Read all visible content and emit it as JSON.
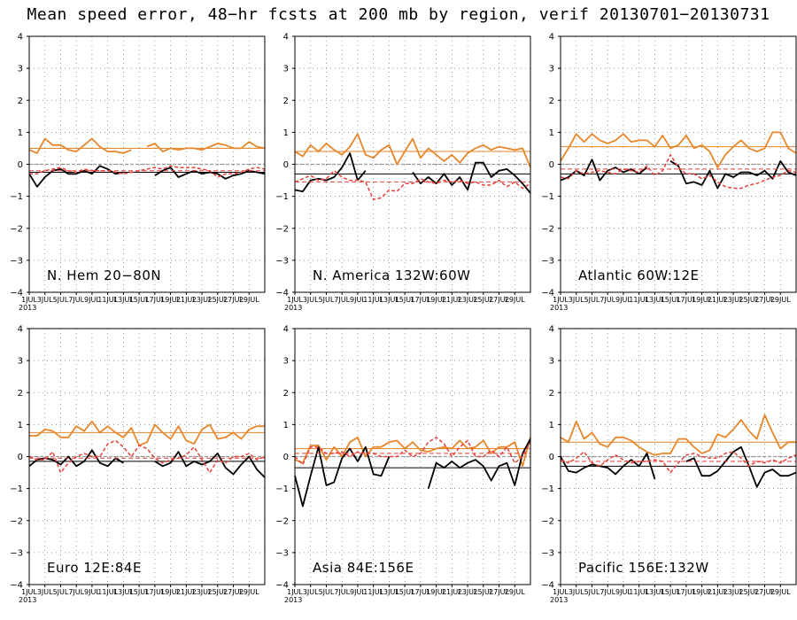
{
  "title": "Mean speed error, 48−hr fcsts at 200 mb by region, verif 20130701−20130731",
  "colors": {
    "orange": "#e8862a",
    "black": "#000000",
    "red": "#e8403a",
    "zero": "#9a9a9a",
    "grid": "#777777"
  },
  "chart_data": [
    {
      "type": "line",
      "label": "N. Hem 20−80N",
      "ylim": [
        -4,
        4
      ],
      "grid": true,
      "yticks": [
        "4",
        "3",
        "2",
        "1",
        "0",
        "−1",
        "−2",
        "−3",
        "−4"
      ],
      "xtick_labels": [
        "1JUL",
        "3JUL",
        "5JUL",
        "7JUL",
        "9JUL",
        "11JUL",
        "13JUL",
        "15JUL",
        "17JUL",
        "19JUL",
        "21JUL",
        "23JUL",
        "25JUL",
        "27JUL",
        "29JUL"
      ],
      "year_label": "2013",
      "series": [
        {
          "color": "orange",
          "dash": false,
          "mean": 0.5,
          "values": [
            0.45,
            0.35,
            0.8,
            0.6,
            0.6,
            0.45,
            0.4,
            0.6,
            0.8,
            0.55,
            0.4,
            0.4,
            0.35,
            0.45,
            null,
            0.55,
            0.65,
            0.4,
            0.5,
            0.45,
            0.5,
            0.5,
            0.45,
            0.55,
            0.65,
            0.6,
            0.5,
            0.5,
            0.7,
            0.55,
            0.5
          ]
        },
        {
          "color": "black",
          "dash": false,
          "mean": -0.25,
          "values": [
            -0.3,
            -0.7,
            -0.4,
            -0.2,
            -0.15,
            -0.3,
            -0.3,
            -0.2,
            -0.3,
            -0.05,
            -0.15,
            -0.3,
            -0.25,
            null,
            null,
            null,
            -0.35,
            -0.2,
            -0.1,
            -0.4,
            -0.3,
            -0.2,
            -0.3,
            -0.25,
            -0.3,
            -0.45,
            -0.35,
            -0.3,
            -0.2,
            -0.25,
            -0.3
          ]
        },
        {
          "color": "red",
          "dash": true,
          "mean": -0.2,
          "values": [
            -0.3,
            -0.3,
            -0.2,
            -0.15,
            -0.1,
            -0.2,
            -0.25,
            -0.15,
            -0.2,
            -0.2,
            -0.2,
            -0.25,
            -0.3,
            -0.25,
            -0.2,
            -0.15,
            -0.1,
            -0.15,
            -0.05,
            -0.1,
            -0.1,
            -0.1,
            -0.15,
            -0.2,
            -0.4,
            -0.3,
            -0.3,
            -0.25,
            -0.15,
            -0.1,
            -0.15
          ]
        }
      ]
    },
    {
      "type": "line",
      "label": "N. America 132W:60W",
      "ylim": [
        -4,
        4
      ],
      "grid": true,
      "yticks": [
        "4",
        "3",
        "2",
        "1",
        "0",
        "−1",
        "−2",
        "−3",
        "−4"
      ],
      "xtick_labels": [
        "1JUL",
        "3JUL",
        "5JUL",
        "7JUL",
        "9JUL",
        "11JUL",
        "13JUL",
        "15JUL",
        "17JUL",
        "19JUL",
        "21JUL",
        "23JUL",
        "25JUL",
        "27JUL",
        "29JUL"
      ],
      "year_label": "2013",
      "series": [
        {
          "color": "orange",
          "dash": false,
          "mean": 0.4,
          "values": [
            0.4,
            0.25,
            0.6,
            0.4,
            0.65,
            0.45,
            0.3,
            0.55,
            0.95,
            0.3,
            0.2,
            0.45,
            0.6,
            0.0,
            0.4,
            0.8,
            0.2,
            0.5,
            0.3,
            0.1,
            0.3,
            0.05,
            0.35,
            0.5,
            0.6,
            0.45,
            0.55,
            0.5,
            0.45,
            0.5,
            -0.1
          ]
        },
        {
          "color": "black",
          "dash": false,
          "mean": -0.3,
          "values": [
            -0.8,
            -0.85,
            -0.5,
            -0.45,
            -0.5,
            -0.4,
            -0.1,
            0.35,
            -0.5,
            -0.2,
            null,
            null,
            null,
            null,
            null,
            -0.25,
            -0.6,
            -0.4,
            -0.6,
            -0.3,
            -0.65,
            -0.4,
            -0.8,
            0.05,
            0.05,
            -0.4,
            -0.2,
            -0.15,
            -0.35,
            -0.6,
            -0.9
          ]
        },
        {
          "color": "red",
          "dash": true,
          "mean": -0.55,
          "values": [
            -0.55,
            -0.45,
            -0.35,
            -0.5,
            -0.45,
            -0.2,
            -0.4,
            -0.5,
            -0.5,
            -0.55,
            -1.1,
            -1.05,
            -0.8,
            -0.85,
            -0.6,
            -0.6,
            -0.45,
            -0.55,
            -0.6,
            -0.5,
            -0.55,
            -0.5,
            -0.6,
            -0.55,
            -0.65,
            -0.65,
            -0.5,
            -0.7,
            -0.55,
            -0.75,
            -0.6
          ]
        }
      ]
    },
    {
      "type": "line",
      "label": "Atlantic 60W:12E",
      "ylim": [
        -4,
        4
      ],
      "grid": true,
      "yticks": [
        "4",
        "3",
        "2",
        "1",
        "0",
        "−1",
        "−2",
        "−3",
        "−4"
      ],
      "xtick_labels": [
        "1JUL",
        "3JUL",
        "5JUL",
        "7JUL",
        "9JUL",
        "11JUL",
        "13JUL",
        "15JUL",
        "17JUL",
        "19JUL",
        "21JUL",
        "23JUL",
        "25JUL",
        "27JUL",
        "29JUL"
      ],
      "year_label": "2013",
      "series": [
        {
          "color": "orange",
          "dash": false,
          "mean": 0.55,
          "values": [
            0.1,
            0.5,
            0.95,
            0.7,
            0.95,
            0.75,
            0.65,
            0.75,
            0.95,
            0.7,
            0.75,
            0.75,
            0.55,
            0.9,
            0.5,
            0.6,
            0.9,
            0.5,
            0.6,
            0.4,
            -0.1,
            0.3,
            0.55,
            0.75,
            0.5,
            0.4,
            0.5,
            1.0,
            1.0,
            0.5,
            0.35
          ]
        },
        {
          "color": "black",
          "dash": false,
          "mean": -0.3,
          "values": [
            -0.5,
            -0.4,
            -0.2,
            -0.35,
            0.15,
            -0.5,
            -0.2,
            -0.1,
            -0.25,
            -0.15,
            -0.3,
            -0.1,
            null,
            null,
            0.1,
            -0.05,
            -0.6,
            -0.55,
            -0.65,
            -0.2,
            -0.75,
            -0.3,
            -0.4,
            -0.25,
            -0.25,
            -0.35,
            -0.2,
            -0.45,
            0.1,
            -0.25,
            -0.35
          ]
        },
        {
          "color": "red",
          "dash": true,
          "mean": -0.15,
          "values": [
            -0.4,
            -0.45,
            -0.2,
            -0.3,
            -0.25,
            -0.2,
            -0.25,
            -0.3,
            -0.15,
            -0.2,
            -0.25,
            -0.05,
            -0.35,
            -0.2,
            0.3,
            -0.1,
            -0.3,
            -0.3,
            -0.45,
            -0.35,
            -0.55,
            -0.7,
            -0.75,
            -0.75,
            -0.65,
            -0.6,
            -0.5,
            -0.4,
            -0.35,
            -0.2,
            -0.25
          ]
        }
      ]
    },
    {
      "type": "line",
      "label": "Euro 12E:84E",
      "ylim": [
        -4,
        4
      ],
      "grid": true,
      "yticks": [
        "4",
        "3",
        "2",
        "1",
        "0",
        "−1",
        "−2",
        "−3",
        "−4"
      ],
      "xtick_labels": [
        "1JUL",
        "3JUL",
        "5JUL",
        "7JUL",
        "9JUL",
        "11JUL",
        "13JUL",
        "15JUL",
        "17JUL",
        "19JUL",
        "21JUL",
        "23JUL",
        "25JUL",
        "27JUL",
        "29JUL"
      ],
      "year_label": "2013",
      "series": [
        {
          "color": "orange",
          "dash": false,
          "mean": 0.75,
          "values": [
            0.65,
            0.65,
            0.85,
            0.8,
            0.6,
            0.6,
            0.95,
            0.8,
            1.1,
            0.75,
            0.95,
            0.75,
            0.6,
            0.9,
            0.35,
            0.45,
            1.0,
            0.75,
            0.55,
            0.95,
            0.5,
            0.4,
            0.85,
            1.0,
            0.55,
            0.6,
            0.75,
            0.55,
            0.85,
            0.95,
            0.95
          ]
        },
        {
          "color": "black",
          "dash": false,
          "mean": -0.15,
          "values": [
            -0.3,
            -0.1,
            -0.05,
            -0.1,
            -0.25,
            0.0,
            -0.3,
            -0.15,
            0.2,
            -0.2,
            -0.3,
            -0.05,
            -0.2,
            null,
            null,
            null,
            -0.15,
            -0.3,
            -0.2,
            0.15,
            -0.3,
            -0.15,
            -0.25,
            -0.15,
            0.1,
            -0.35,
            -0.55,
            -0.25,
            0.0,
            -0.4,
            -0.65
          ]
        },
        {
          "color": "red",
          "dash": true,
          "mean": -0.05,
          "values": [
            0.0,
            -0.1,
            -0.1,
            0.15,
            -0.5,
            -0.2,
            0.0,
            0.1,
            0.0,
            0.0,
            0.4,
            0.5,
            0.3,
            0.0,
            0.35,
            0.25,
            -0.05,
            -0.2,
            -0.1,
            -0.05,
            0.05,
            0.3,
            -0.1,
            -0.5,
            -0.1,
            -0.2,
            0.0,
            0.0,
            0.1,
            -0.1,
            0.0
          ]
        }
      ]
    },
    {
      "type": "line",
      "label": "Asia 84E:156E",
      "ylim": [
        -4,
        4
      ],
      "grid": true,
      "yticks": [
        "4",
        "3",
        "2",
        "1",
        "0",
        "−1",
        "−2",
        "−3",
        "−4"
      ],
      "xtick_labels": [
        "1JUL",
        "3JUL",
        "5JUL",
        "7JUL",
        "9JUL",
        "11JUL",
        "13JUL",
        "15JUL",
        "17JUL",
        "19JUL",
        "21JUL",
        "23JUL",
        "25JUL",
        "27JUL",
        "29JUL"
      ],
      "year_label": "2013",
      "series": [
        {
          "color": "orange",
          "dash": false,
          "mean": 0.25,
          "values": [
            -0.1,
            -0.2,
            0.35,
            0.35,
            -0.1,
            0.3,
            0.0,
            0.45,
            0.6,
            0.0,
            0.3,
            0.3,
            0.45,
            0.5,
            0.25,
            0.45,
            0.2,
            0.15,
            0.25,
            0.3,
            0.25,
            0.5,
            0.25,
            0.3,
            0.5,
            0.1,
            0.3,
            0.3,
            0.45,
            -0.3,
            0.6
          ]
        },
        {
          "color": "black",
          "dash": false,
          "mean": -0.35,
          "values": [
            -0.6,
            -1.55,
            -0.6,
            0.3,
            -0.9,
            -0.8,
            -0.05,
            0.25,
            -0.15,
            0.3,
            -0.55,
            -0.6,
            0.0,
            null,
            null,
            null,
            null,
            -1.0,
            -0.2,
            -0.35,
            -0.15,
            -0.35,
            -0.2,
            -0.1,
            -0.3,
            -0.75,
            -0.3,
            -0.2,
            -0.9,
            0.1,
            0.55
          ]
        },
        {
          "color": "red",
          "dash": true,
          "mean": 0.1,
          "values": [
            0.0,
            -0.25,
            0.3,
            0.3,
            0.1,
            0.1,
            0.15,
            0.0,
            0.15,
            0.1,
            0.1,
            0.0,
            0.0,
            0.0,
            0.2,
            0.0,
            0.1,
            0.45,
            0.6,
            0.4,
            0.0,
            0.3,
            0.5,
            0.0,
            0.0,
            0.2,
            0.0,
            0.3,
            -0.2,
            0.0,
            0.45
          ]
        }
      ]
    },
    {
      "type": "line",
      "label": "Pacific 156E:132W",
      "ylim": [
        -4,
        4
      ],
      "grid": true,
      "yticks": [
        "4",
        "3",
        "2",
        "1",
        "0",
        "−1",
        "−2",
        "−3",
        "−4"
      ],
      "xtick_labels": [
        "1JUL",
        "3JUL",
        "5JUL",
        "7JUL",
        "9JUL",
        "11JUL",
        "13JUL",
        "15JUL",
        "17JUL",
        "19JUL",
        "21JUL",
        "23JUL",
        "25JUL",
        "27JUL",
        "29JUL"
      ],
      "year_label": "2013",
      "series": [
        {
          "color": "orange",
          "dash": false,
          "mean": 0.45,
          "values": [
            0.6,
            0.45,
            1.1,
            0.55,
            0.75,
            0.4,
            0.3,
            0.6,
            0.6,
            0.5,
            0.3,
            0.15,
            0.05,
            0.1,
            0.1,
            0.55,
            0.55,
            0.3,
            0.1,
            0.2,
            0.7,
            0.6,
            0.85,
            1.15,
            0.8,
            0.55,
            1.3,
            0.75,
            0.25,
            0.45,
            0.45
          ]
        },
        {
          "color": "black",
          "dash": false,
          "mean": -0.3,
          "values": [
            0.0,
            -0.45,
            -0.5,
            -0.35,
            -0.25,
            -0.3,
            -0.35,
            -0.55,
            -0.3,
            -0.1,
            -0.3,
            0.1,
            -0.7,
            null,
            null,
            null,
            -0.15,
            -0.05,
            -0.6,
            -0.6,
            -0.45,
            -0.15,
            0.15,
            0.3,
            -0.3,
            -0.95,
            -0.5,
            -0.4,
            -0.6,
            -0.6,
            -0.5
          ]
        },
        {
          "color": "red",
          "dash": true,
          "mean": -0.15,
          "values": [
            -0.1,
            -0.2,
            -0.05,
            0.15,
            -0.2,
            -0.3,
            -0.1,
            0.05,
            -0.1,
            -0.2,
            -0.15,
            -0.15,
            -0.1,
            -0.15,
            -0.5,
            -0.2,
            0.05,
            0.1,
            0.0,
            -0.05,
            -0.05,
            0.1,
            0.15,
            -0.05,
            -0.3,
            -0.15,
            -0.2,
            -0.1,
            -0.2,
            -0.05,
            0.05
          ]
        }
      ]
    }
  ]
}
